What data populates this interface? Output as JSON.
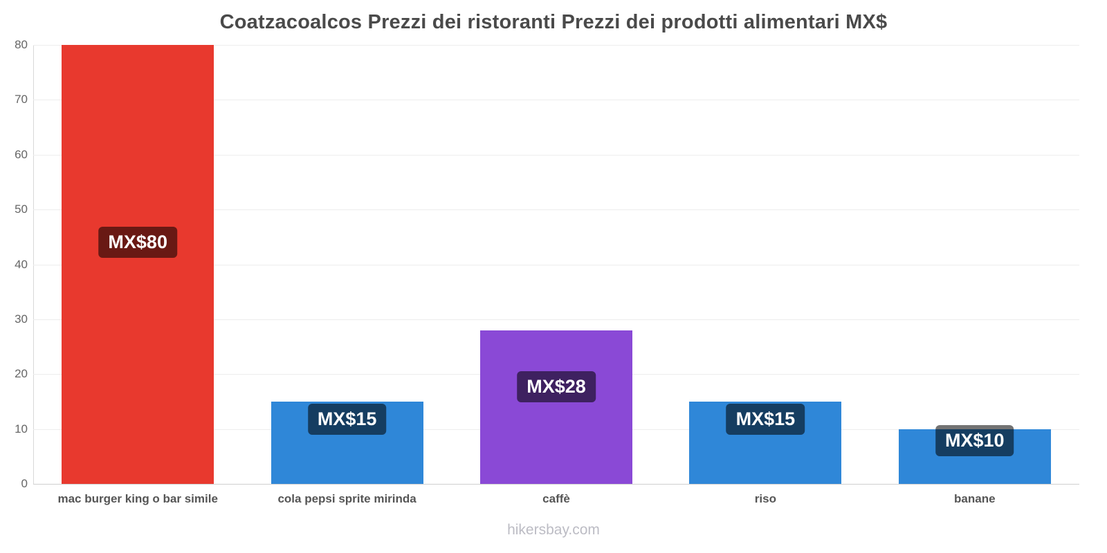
{
  "title": "Coatzacoalcos Prezzi dei ristoranti Prezzi dei prodotti alimentari MX$",
  "footer": {
    "site_label": "hikersbay.com"
  },
  "chart_data": {
    "type": "bar",
    "title": "Coatzacoalcos Prezzi dei ristoranti Prezzi dei prodotti alimentari MX$",
    "categories": [
      "mac burger king o bar simile",
      "cola pepsi sprite mirinda",
      "caffè",
      "riso",
      "banane"
    ],
    "values": [
      80,
      15,
      28,
      15,
      10
    ],
    "value_labels": [
      "MX$80",
      "MX$15",
      "MX$28",
      "MX$15",
      "MX$10"
    ],
    "bar_colors": [
      "#e8392e",
      "#2f87d8",
      "#8a49d6",
      "#2f87d8",
      "#2f87d8"
    ],
    "label_bg": "rgba(0,0,0,0.55)",
    "xlabel": "",
    "ylabel": "",
    "ylim": [
      0,
      80
    ],
    "yticks": [
      0,
      10,
      20,
      30,
      40,
      50,
      60,
      70,
      80
    ],
    "grid": true,
    "legend": false,
    "currency": "MX$"
  }
}
